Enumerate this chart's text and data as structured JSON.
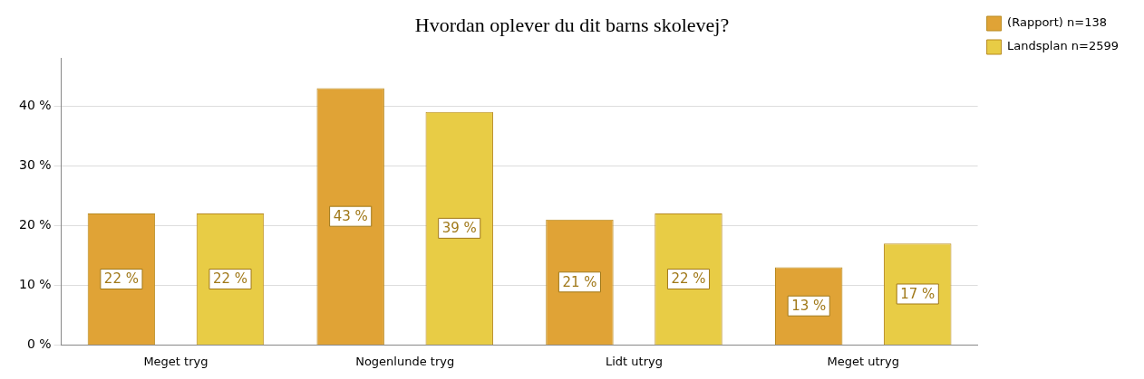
{
  "chart_data": {
    "type": "bar",
    "title": "Hvordan oplever du dit barns skolevej?",
    "categories": [
      "Meget tryg",
      "Nogenlunde tryg",
      "Lidt utryg",
      "Meget utryg"
    ],
    "series": [
      {
        "name": "(Rapport) n=138",
        "color": "#e0a336",
        "values": [
          22,
          43,
          21,
          13
        ],
        "value_labels": [
          "22 %",
          "43 %",
          "21 %",
          "13 %"
        ]
      },
      {
        "name": "Landsplan n=2599",
        "color": "#e8cc45",
        "values": [
          22,
          39,
          22,
          17
        ],
        "value_labels": [
          "22 %",
          "39 %",
          "22 %",
          "17 %"
        ]
      }
    ],
    "ylim": [
      0,
      48
    ],
    "yticks": [
      {
        "value": 0,
        "label": "0 %"
      },
      {
        "value": 10,
        "label": "10 %"
      },
      {
        "value": 20,
        "label": "20 %"
      },
      {
        "value": 30,
        "label": "30 %"
      },
      {
        "value": 40,
        "label": "40 %"
      }
    ],
    "grid": "y",
    "legend": "top right"
  }
}
